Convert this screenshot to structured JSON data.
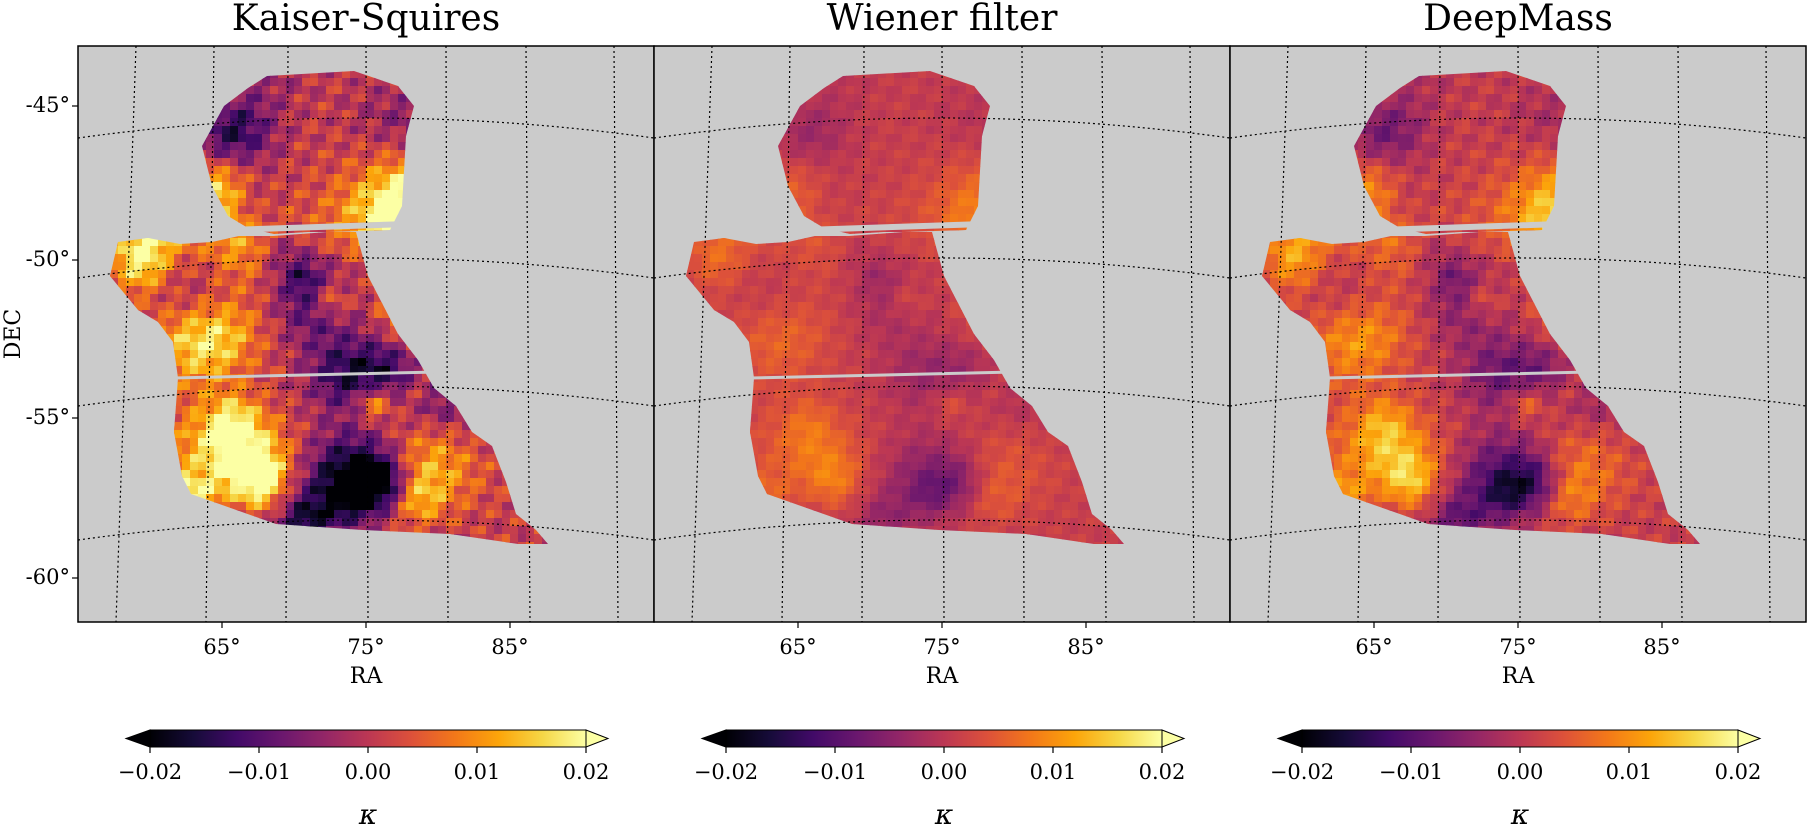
{
  "chart_data": {
    "type": "heatmap",
    "colormap": "inferno",
    "grid": true,
    "panels": [
      {
        "title": "Kaiser-Squires",
        "contrast": 1.0
      },
      {
        "title": "Wiener filter",
        "contrast": 0.28
      },
      {
        "title": "DeepMass",
        "contrast": 0.55
      }
    ],
    "xlabel": "RA",
    "ylabel": "DEC",
    "x_ticks": [
      "65°",
      "75°",
      "85°"
    ],
    "y_ticks": [
      "-45°",
      "-50°",
      "-55°",
      "-60°"
    ],
    "colorbar": {
      "label": "κ",
      "range": [
        -0.02,
        0.02
      ],
      "extend": "both",
      "ticks": [
        "−0.02",
        "−0.01",
        "0.00",
        "0.01",
        "0.02"
      ]
    }
  }
}
